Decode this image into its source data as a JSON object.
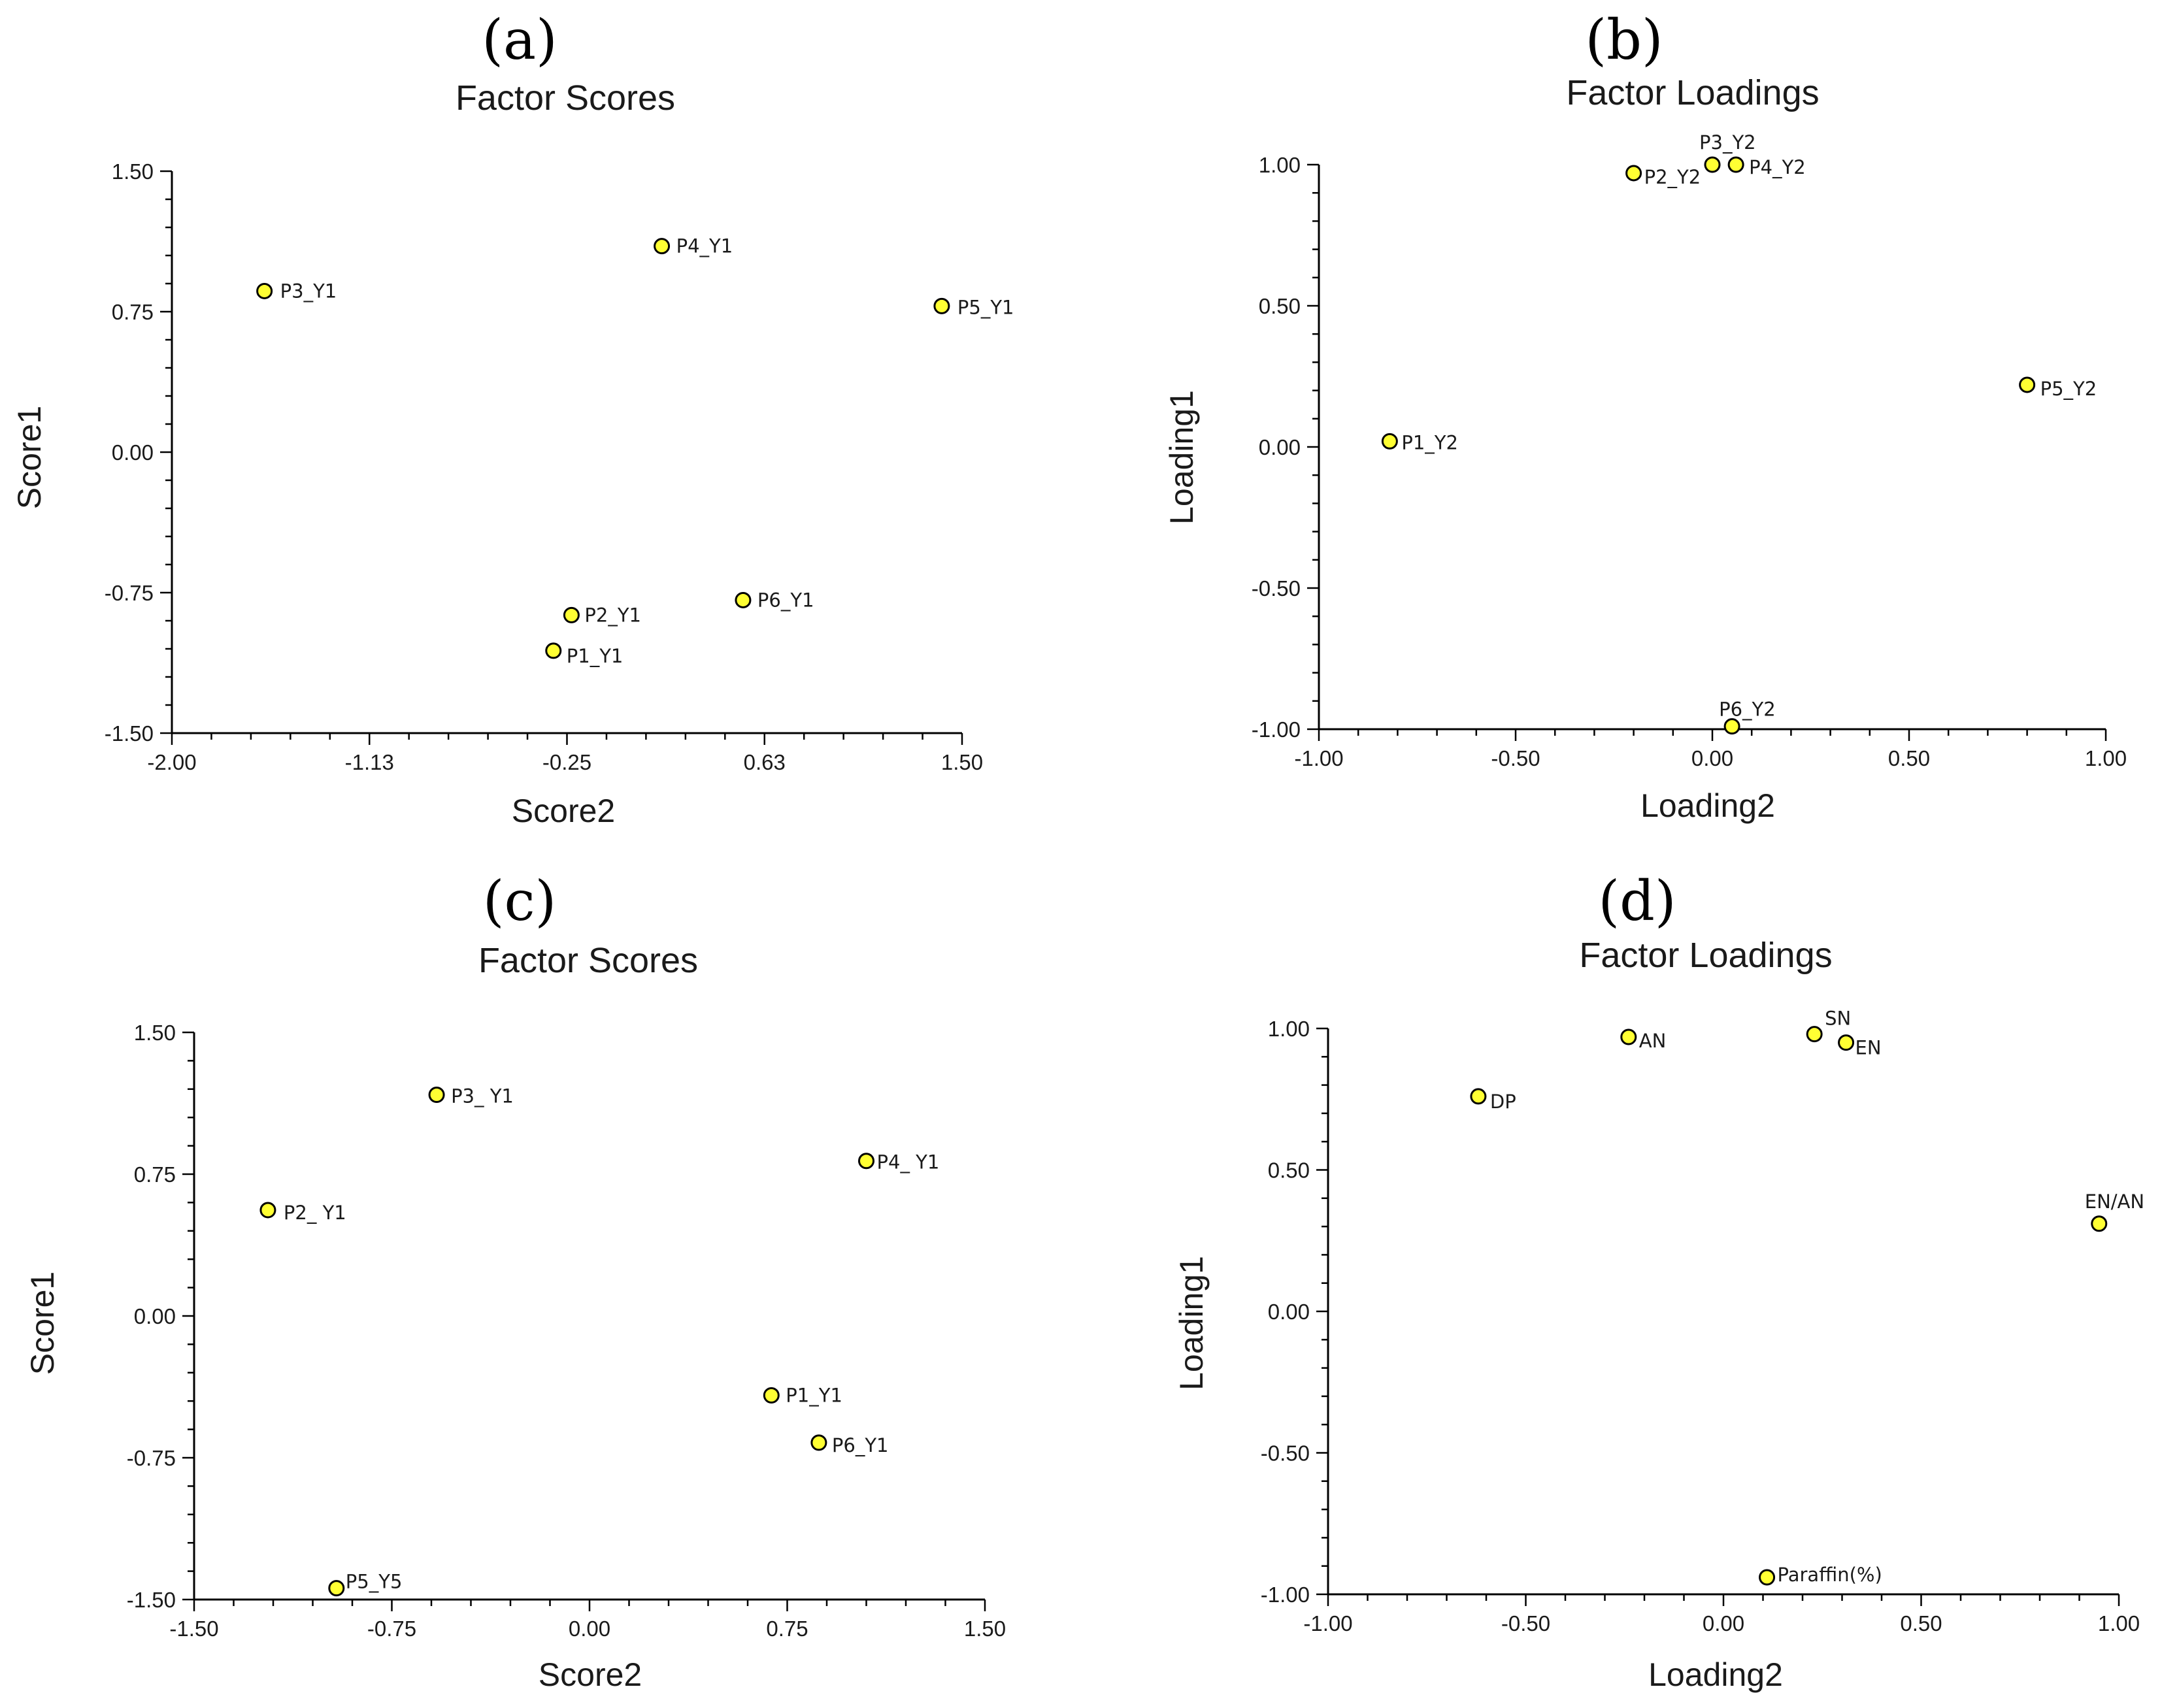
{
  "chart_data": [
    {
      "type": "scatter",
      "panel": "(a)",
      "title": "Factor Scores",
      "xlabel": "Score2",
      "ylabel": "Score1",
      "xlim": [
        -2.0,
        1.5
      ],
      "ylim": [
        -1.5,
        1.5
      ],
      "xticks": [
        "-2.00",
        "-1.13",
        "-0.25",
        "0.63",
        "1.50"
      ],
      "yticks": [
        "1.50",
        "0.75",
        "0.00",
        "-0.75",
        "-1.50"
      ],
      "points": [
        {
          "label": "P3_Y1",
          "x": -1.59,
          "y": 0.86
        },
        {
          "label": "P4_Y1",
          "x": 0.17,
          "y": 1.1
        },
        {
          "label": "P5_Y1",
          "x": 1.41,
          "y": 0.78
        },
        {
          "label": "P2_Y1",
          "x": -0.23,
          "y": -0.87
        },
        {
          "label": "P6_Y1",
          "x": 0.53,
          "y": -0.79
        },
        {
          "label": "P1_Y1",
          "x": -0.31,
          "y": -1.06
        }
      ]
    },
    {
      "type": "scatter",
      "panel": "(b)",
      "title": "Factor Loadings",
      "xlabel": "Loading2",
      "ylabel": "Loading1",
      "xlim": [
        -1.0,
        1.0
      ],
      "ylim": [
        -1.0,
        1.0
      ],
      "xticks": [
        "-1.00",
        "-0.50",
        "0.00",
        "0.50",
        "1.00"
      ],
      "yticks": [
        "1.00",
        "0.50",
        "0.00",
        "-0.50",
        "-1.00"
      ],
      "points": [
        {
          "label": "P3_Y2",
          "x": 0.0,
          "y": 1.0
        },
        {
          "label": "P4_Y2",
          "x": 0.06,
          "y": 1.0
        },
        {
          "label": "P2_Y2",
          "x": -0.2,
          "y": 0.97
        },
        {
          "label": "P5_Y2",
          "x": 0.8,
          "y": 0.22
        },
        {
          "label": "P1_Y2",
          "x": -0.82,
          "y": 0.02
        },
        {
          "label": "P6_Y2",
          "x": 0.05,
          "y": -0.99
        }
      ]
    },
    {
      "type": "scatter",
      "panel": "(c)",
      "title": "Factor Scores",
      "xlabel": "Score2",
      "ylabel": "Score1",
      "xlim": [
        -1.5,
        1.5
      ],
      "ylim": [
        -1.5,
        1.5
      ],
      "xticks": [
        "-1.50",
        "-0.75",
        "0.00",
        "0.75",
        "1.50"
      ],
      "yticks": [
        "1.50",
        "0.75",
        "0.00",
        "-0.75",
        "-1.50"
      ],
      "points": [
        {
          "label": "P3_ Y1",
          "x": -0.58,
          "y": 1.17
        },
        {
          "label": "P4_ Y1",
          "x": 1.05,
          "y": 0.82
        },
        {
          "label": "P2_ Y1",
          "x": -1.22,
          "y": 0.56
        },
        {
          "label": "P1_Y1",
          "x": 0.69,
          "y": -0.42
        },
        {
          "label": "P6_Y1",
          "x": 0.87,
          "y": -0.67
        },
        {
          "label": "P5_Y5",
          "x": -0.96,
          "y": -1.44
        }
      ]
    },
    {
      "type": "scatter",
      "panel": "(d)",
      "title": "Factor Loadings",
      "xlabel": "Loading2",
      "ylabel": "Loading1",
      "xlim": [
        -1.0,
        1.0
      ],
      "ylim": [
        -1.0,
        1.0
      ],
      "xticks": [
        "-1.00",
        "-0.50",
        "0.00",
        "0.50",
        "1.00"
      ],
      "yticks": [
        "1.00",
        "0.50",
        "0.00",
        "-0.50",
        "-1.00"
      ],
      "points": [
        {
          "label": "SN",
          "x": 0.23,
          "y": 0.98
        },
        {
          "label": "AN",
          "x": -0.24,
          "y": 0.97
        },
        {
          "label": "EN",
          "x": 0.31,
          "y": 0.95
        },
        {
          "label": "DP",
          "x": -0.62,
          "y": 0.76
        },
        {
          "label": "EN/AN",
          "x": 0.95,
          "y": 0.31
        },
        {
          "label": "Paraffin(%)",
          "x": 0.11,
          "y": -0.94
        }
      ]
    }
  ]
}
